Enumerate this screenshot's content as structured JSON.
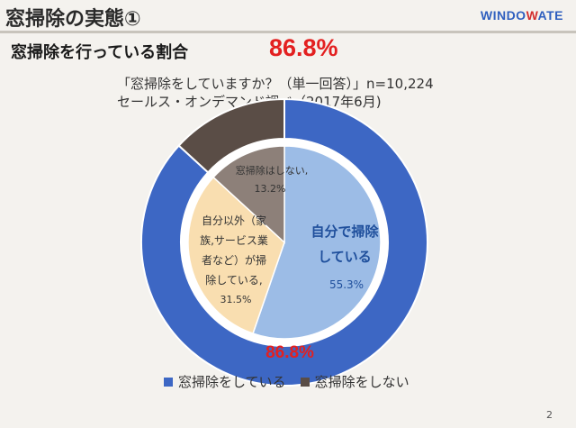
{
  "slide": {
    "title": "窓掃除の実態①",
    "subtitle": "窓掃除を行っている割合",
    "headline_value": "86.8%",
    "question": "「窓掃除をしていますか？（単一回答）」n=10,224",
    "source": "セールス・オンデマンド調べ（2017年6月)",
    "page_number": "2",
    "logo": {
      "text_a": "WINDO",
      "text_b": "W",
      "text_c": "ATE"
    }
  },
  "chart_data": [
    {
      "type": "pie",
      "variant": "donut",
      "title": "",
      "series": [
        {
          "label": "窓掃除をしている",
          "value": 86.8,
          "value_label": "86.8%",
          "color": "#3d67c4"
        },
        {
          "label": "窓掃除をしない",
          "value": 13.2,
          "color": "#5a4d46"
        }
      ],
      "legend": {
        "position": "bottom",
        "items": [
          "窓掃除をしている",
          "窓掃除をしない"
        ]
      }
    },
    {
      "type": "pie",
      "variant": "inner",
      "series": [
        {
          "label_lines": [
            "自分で掃除",
            "している"
          ],
          "value": 55.3,
          "value_label": "55.3%",
          "color": "#9cbce6"
        },
        {
          "label_lines": [
            "自分以外（家",
            "族,サービス業",
            "者など）が掃",
            "除している,"
          ],
          "value": 31.5,
          "value_label": "31.5%",
          "color": "#f9deb0"
        },
        {
          "label_lines": [
            "窓掃除はしない,"
          ],
          "value": 13.2,
          "value_label": "13.2%",
          "color": "#8d8079"
        }
      ]
    }
  ],
  "colors": {
    "accent_red": "#e32020",
    "outer_blue": "#3d67c4",
    "outer_brown": "#5a4d46",
    "background": "#f4f2ee"
  }
}
